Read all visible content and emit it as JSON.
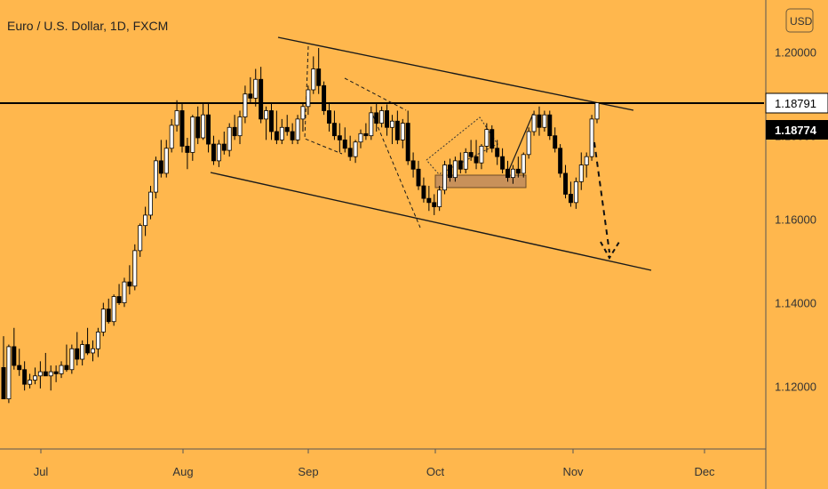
{
  "chart_data": {
    "type": "candlestick",
    "title": "Euro / U.S. Dollar, 1D, FXCM",
    "currency_button": "USD",
    "price_labels": {
      "upper": "1.18791",
      "lower": "1.18774"
    },
    "y_ticks": [
      "1.20000",
      "1.18000",
      "1.16000",
      "1.14000",
      "1.12000"
    ],
    "x_ticks": [
      "Jul",
      "Aug",
      "Sep",
      "Oct",
      "Nov",
      "Dec"
    ],
    "ylim": [
      1.105,
      1.2125
    ],
    "grid": false,
    "colors": {
      "background": "#FFB74D",
      "up_body": "#FFFFFF",
      "down_body": "#000000",
      "wick": "#000000",
      "box": "#C8915A",
      "label_white_bg": "#FFFFFF",
      "label_black_bg": "#000000"
    },
    "candles": [
      [
        1.1245,
        1.132,
        1.117,
        1.117
      ],
      [
        1.117,
        1.13,
        1.116,
        1.1295
      ],
      [
        1.1295,
        1.134,
        1.124,
        1.125
      ],
      [
        1.125,
        1.129,
        1.1225,
        1.124
      ],
      [
        1.124,
        1.126,
        1.119,
        1.1205
      ],
      [
        1.1205,
        1.123,
        1.1195,
        1.1215
      ],
      [
        1.1215,
        1.1245,
        1.1205,
        1.1225
      ],
      [
        1.1225,
        1.126,
        1.1195,
        1.1235
      ],
      [
        1.1235,
        1.128,
        1.1225,
        1.1225
      ],
      [
        1.1225,
        1.125,
        1.119,
        1.1235
      ],
      [
        1.1235,
        1.125,
        1.121,
        1.123
      ],
      [
        1.123,
        1.126,
        1.122,
        1.125
      ],
      [
        1.125,
        1.13,
        1.1235,
        1.124
      ],
      [
        1.124,
        1.13,
        1.123,
        1.129
      ],
      [
        1.129,
        1.133,
        1.125,
        1.1265
      ],
      [
        1.1265,
        1.131,
        1.125,
        1.13
      ],
      [
        1.13,
        1.134,
        1.1275,
        1.128
      ],
      [
        1.128,
        1.131,
        1.126,
        1.129
      ],
      [
        1.129,
        1.134,
        1.127,
        1.133
      ],
      [
        1.133,
        1.14,
        1.132,
        1.1385
      ],
      [
        1.1385,
        1.141,
        1.135,
        1.1355
      ],
      [
        1.1355,
        1.142,
        1.1345,
        1.1415
      ],
      [
        1.1415,
        1.1445,
        1.1395,
        1.14
      ],
      [
        1.14,
        1.146,
        1.139,
        1.145
      ],
      [
        1.145,
        1.149,
        1.142,
        1.144
      ],
      [
        1.144,
        1.154,
        1.143,
        1.1525
      ],
      [
        1.1525,
        1.159,
        1.151,
        1.1585
      ],
      [
        1.1585,
        1.163,
        1.156,
        1.161
      ],
      [
        1.161,
        1.168,
        1.16,
        1.1665
      ],
      [
        1.1665,
        1.175,
        1.165,
        1.174
      ],
      [
        1.174,
        1.179,
        1.17,
        1.171
      ],
      [
        1.171,
        1.179,
        1.17,
        1.177
      ],
      [
        1.177,
        1.184,
        1.176,
        1.1825
      ],
      [
        1.1825,
        1.1885,
        1.181,
        1.186
      ],
      [
        1.186,
        1.188,
        1.176,
        1.1775
      ],
      [
        1.1775,
        1.1795,
        1.172,
        1.176
      ],
      [
        1.176,
        1.185,
        1.174,
        1.1845
      ],
      [
        1.1845,
        1.187,
        1.178,
        1.1795
      ],
      [
        1.1795,
        1.188,
        1.179,
        1.185
      ],
      [
        1.185,
        1.188,
        1.176,
        1.178
      ],
      [
        1.178,
        1.18,
        1.173,
        1.174
      ],
      [
        1.174,
        1.179,
        1.1725,
        1.178
      ],
      [
        1.178,
        1.181,
        1.1755,
        1.1765
      ],
      [
        1.1765,
        1.183,
        1.175,
        1.182
      ],
      [
        1.182,
        1.185,
        1.179,
        1.18
      ],
      [
        1.18,
        1.186,
        1.178,
        1.1845
      ],
      [
        1.1845,
        1.192,
        1.183,
        1.19
      ],
      [
        1.19,
        1.194,
        1.188,
        1.189
      ],
      [
        1.189,
        1.196,
        1.187,
        1.1935
      ],
      [
        1.1935,
        1.1965,
        1.183,
        1.184
      ],
      [
        1.184,
        1.187,
        1.179,
        1.186
      ],
      [
        1.186,
        1.188,
        1.179,
        1.181
      ],
      [
        1.181,
        1.186,
        1.178,
        1.179
      ],
      [
        1.179,
        1.184,
        1.178,
        1.182
      ],
      [
        1.182,
        1.185,
        1.18,
        1.181
      ],
      [
        1.181,
        1.183,
        1.178,
        1.179
      ],
      [
        1.179,
        1.185,
        1.178,
        1.184
      ],
      [
        1.184,
        1.188,
        1.181,
        1.187
      ],
      [
        1.187,
        1.192,
        1.185,
        1.191
      ],
      [
        1.191,
        1.199,
        1.19,
        1.196
      ],
      [
        1.196,
        1.201,
        1.19,
        1.192
      ],
      [
        1.192,
        1.193,
        1.185,
        1.186
      ],
      [
        1.186,
        1.188,
        1.181,
        1.183
      ],
      [
        1.183,
        1.186,
        1.179,
        1.18
      ],
      [
        1.18,
        1.183,
        1.176,
        1.179
      ],
      [
        1.179,
        1.182,
        1.176,
        1.177
      ],
      [
        1.177,
        1.18,
        1.174,
        1.175
      ],
      [
        1.175,
        1.179,
        1.1735,
        1.1785
      ],
      [
        1.1785,
        1.1815,
        1.177,
        1.1805
      ],
      [
        1.1805,
        1.183,
        1.179,
        1.18
      ],
      [
        1.18,
        1.187,
        1.179,
        1.1855
      ],
      [
        1.1855,
        1.188,
        1.181,
        1.183
      ],
      [
        1.183,
        1.187,
        1.182,
        1.186
      ],
      [
        1.186,
        1.1875,
        1.18,
        1.182
      ],
      [
        1.182,
        1.185,
        1.178,
        1.1835
      ],
      [
        1.1835,
        1.186,
        1.178,
        1.179
      ],
      [
        1.179,
        1.184,
        1.177,
        1.183
      ],
      [
        1.183,
        1.186,
        1.173,
        1.174
      ],
      [
        1.174,
        1.176,
        1.17,
        1.172
      ],
      [
        1.172,
        1.174,
        1.167,
        1.168
      ],
      [
        1.168,
        1.17,
        1.164,
        1.165
      ],
      [
        1.165,
        1.168,
        1.162,
        1.164
      ],
      [
        1.164,
        1.166,
        1.161,
        1.163
      ],
      [
        1.163,
        1.168,
        1.162,
        1.167
      ],
      [
        1.167,
        1.174,
        1.166,
        1.173
      ],
      [
        1.173,
        1.1745,
        1.169,
        1.17
      ],
      [
        1.17,
        1.175,
        1.169,
        1.174
      ],
      [
        1.174,
        1.176,
        1.171,
        1.172
      ],
      [
        1.172,
        1.177,
        1.171,
        1.176
      ],
      [
        1.176,
        1.179,
        1.174,
        1.175
      ],
      [
        1.175,
        1.179,
        1.172,
        1.1735
      ],
      [
        1.1735,
        1.178,
        1.172,
        1.1775
      ],
      [
        1.1775,
        1.183,
        1.176,
        1.1815
      ],
      [
        1.1815,
        1.1825,
        1.176,
        1.177
      ],
      [
        1.177,
        1.179,
        1.173,
        1.175
      ],
      [
        1.175,
        1.177,
        1.171,
        1.172
      ],
      [
        1.172,
        1.174,
        1.169,
        1.17
      ],
      [
        1.17,
        1.173,
        1.1685,
        1.172
      ],
      [
        1.172,
        1.175,
        1.17,
        1.171
      ],
      [
        1.171,
        1.176,
        1.17,
        1.1755
      ],
      [
        1.1755,
        1.182,
        1.1745,
        1.181
      ],
      [
        1.181,
        1.186,
        1.18,
        1.185
      ],
      [
        1.185,
        1.187,
        1.18,
        1.182
      ],
      [
        1.182,
        1.186,
        1.181,
        1.185
      ],
      [
        1.185,
        1.186,
        1.179,
        1.18
      ],
      [
        1.18,
        1.182,
        1.176,
        1.177
      ],
      [
        1.177,
        1.178,
        1.17,
        1.171
      ],
      [
        1.171,
        1.173,
        1.165,
        1.166
      ],
      [
        1.166,
        1.169,
        1.163,
        1.164
      ],
      [
        1.164,
        1.17,
        1.1625,
        1.169
      ],
      [
        1.169,
        1.176,
        1.167,
        1.173
      ],
      [
        1.173,
        1.176,
        1.17,
        1.175
      ],
      [
        1.175,
        1.185,
        1.174,
        1.184
      ],
      [
        1.184,
        1.188,
        1.183,
        1.1879
      ]
    ],
    "trendlines": {
      "channel_top": [
        [
          1.2035,
          0
        ],
        [
          1.1865,
          1
        ]
      ],
      "channel_bottom": [
        [
          1.1718,
          0
        ],
        [
          1.149,
          1
        ]
      ],
      "horizontal_level": 1.1879
    }
  }
}
